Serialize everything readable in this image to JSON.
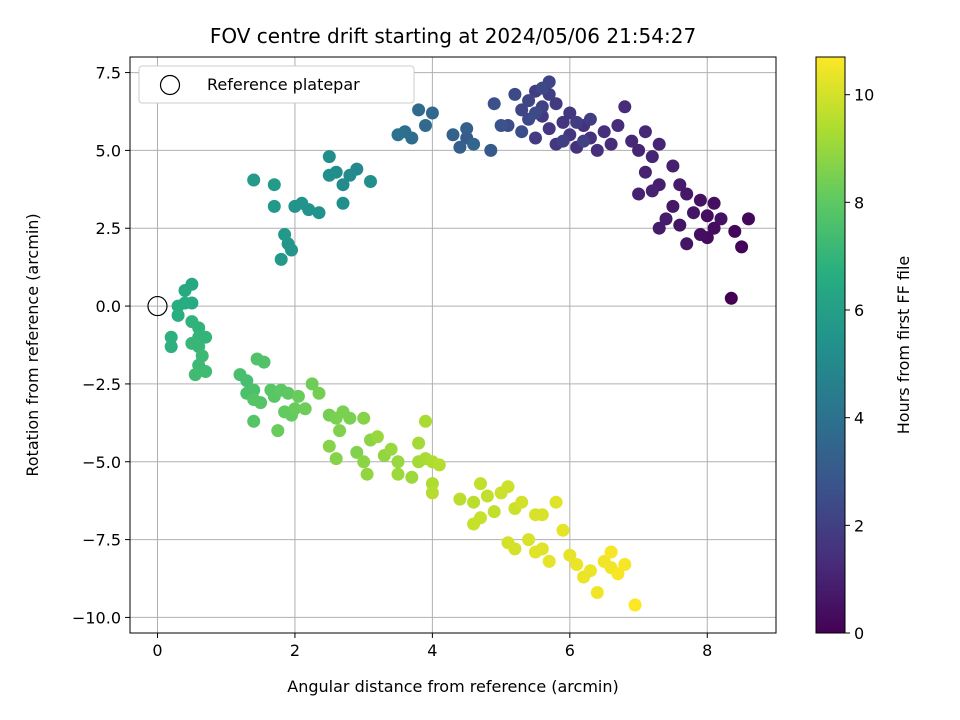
{
  "chart_data": {
    "type": "scatter",
    "title": "FOV centre drift starting at 2024/05/06 21:54:27",
    "xlabel": "Angular distance from reference (arcmin)",
    "ylabel": "Rotation from reference (arcmin)",
    "xlim": [
      -0.4,
      9.0
    ],
    "ylim": [
      -10.5,
      8.0
    ],
    "xticks": [
      0,
      2,
      4,
      6,
      8
    ],
    "xtick_labels": [
      "0",
      "2",
      "4",
      "6",
      "8"
    ],
    "yticks": [
      -10.0,
      -7.5,
      -5.0,
      -2.5,
      0.0,
      2.5,
      5.0,
      7.5
    ],
    "ytick_labels": [
      "−10.0",
      "−7.5",
      "−5.0",
      "−2.5",
      "0.0",
      "2.5",
      "5.0",
      "7.5"
    ],
    "grid": true,
    "legend": {
      "placement": "upper-left",
      "entries": [
        "Reference platepar"
      ]
    },
    "reference_point": {
      "x": 0,
      "y": 0
    },
    "colorbar": {
      "label": "Hours from first FF file",
      "range": [
        0,
        10.7
      ],
      "ticks": [
        0,
        2,
        4,
        6,
        8,
        10
      ],
      "tick_labels": [
        "0",
        "2",
        "4",
        "6",
        "8",
        "10"
      ],
      "colormap": "viridis"
    },
    "points": [
      [
        8.35,
        0.25,
        0.0
      ],
      [
        8.5,
        1.9,
        0.1
      ],
      [
        8.6,
        2.8,
        0.2
      ],
      [
        8.4,
        2.4,
        0.2
      ],
      [
        8.0,
        2.2,
        0.3
      ],
      [
        8.1,
        2.5,
        0.3
      ],
      [
        7.9,
        2.3,
        0.4
      ],
      [
        8.0,
        2.9,
        0.4
      ],
      [
        8.1,
        3.3,
        0.4
      ],
      [
        7.9,
        3.4,
        0.5
      ],
      [
        8.2,
        2.8,
        0.5
      ],
      [
        7.7,
        2.0,
        0.6
      ],
      [
        7.6,
        2.6,
        0.6
      ],
      [
        7.8,
        3.0,
        0.6
      ],
      [
        7.7,
        3.6,
        0.7
      ],
      [
        7.5,
        3.2,
        0.7
      ],
      [
        7.4,
        2.8,
        0.8
      ],
      [
        7.3,
        2.5,
        0.8
      ],
      [
        7.6,
        3.9,
        0.8
      ],
      [
        7.5,
        4.5,
        0.9
      ],
      [
        7.3,
        3.9,
        0.9
      ],
      [
        7.2,
        3.7,
        1.0
      ],
      [
        7.1,
        4.3,
        1.0
      ],
      [
        7.0,
        3.6,
        1.0
      ],
      [
        7.2,
        4.8,
        1.1
      ],
      [
        7.0,
        5.0,
        1.1
      ],
      [
        7.3,
        5.2,
        1.1
      ],
      [
        7.1,
        5.6,
        1.2
      ],
      [
        6.9,
        5.3,
        1.2
      ],
      [
        6.7,
        5.8,
        1.3
      ],
      [
        6.8,
        6.4,
        1.3
      ],
      [
        6.6,
        5.2,
        1.3
      ],
      [
        6.5,
        5.6,
        1.4
      ],
      [
        6.4,
        5.0,
        1.4
      ],
      [
        6.3,
        5.4,
        1.5
      ],
      [
        6.2,
        5.8,
        1.5
      ],
      [
        6.1,
        5.1,
        1.5
      ],
      [
        6.0,
        5.5,
        1.6
      ],
      [
        5.9,
        5.9,
        1.6
      ],
      [
        5.8,
        5.2,
        1.7
      ],
      [
        5.7,
        5.7,
        1.7
      ],
      [
        6.0,
        6.2,
        1.7
      ],
      [
        5.6,
        6.1,
        1.8
      ],
      [
        5.5,
        5.4,
        1.8
      ],
      [
        5.8,
        6.5,
        1.8
      ],
      [
        6.1,
        5.9,
        1.9
      ],
      [
        6.3,
        6.0,
        1.9
      ],
      [
        5.7,
        6.8,
        2.0
      ],
      [
        5.5,
        6.9,
        2.0
      ],
      [
        5.9,
        5.3,
        2.0
      ],
      [
        6.2,
        5.3,
        2.1
      ],
      [
        5.6,
        6.4,
        2.1
      ],
      [
        5.4,
        6.6,
        2.2
      ],
      [
        5.3,
        6.3,
        2.2
      ],
      [
        5.7,
        7.2,
        2.2
      ],
      [
        5.6,
        7.0,
        2.3
      ],
      [
        5.4,
        6.0,
        2.3
      ],
      [
        5.2,
        6.8,
        2.4
      ],
      [
        5.5,
        6.2,
        2.4
      ],
      [
        5.3,
        5.6,
        2.5
      ],
      [
        5.1,
        5.8,
        2.5
      ],
      [
        4.9,
        6.5,
        2.6
      ],
      [
        5.0,
        5.8,
        2.7
      ],
      [
        4.85,
        5.0,
        3.0
      ],
      [
        4.5,
        5.4,
        3.1
      ],
      [
        4.4,
        5.1,
        3.2
      ],
      [
        4.5,
        5.7,
        3.3
      ],
      [
        4.3,
        5.5,
        3.4
      ],
      [
        4.6,
        5.2,
        3.5
      ],
      [
        4.0,
        6.2,
        3.6
      ],
      [
        3.9,
        5.8,
        3.7
      ],
      [
        3.8,
        6.3,
        3.7
      ],
      [
        3.7,
        5.4,
        3.8
      ],
      [
        3.6,
        5.6,
        3.9
      ],
      [
        3.5,
        5.5,
        4.0
      ],
      [
        2.9,
        4.4,
        5.0
      ],
      [
        2.8,
        4.2,
        5.1
      ],
      [
        2.7,
        3.9,
        5.1
      ],
      [
        2.6,
        4.3,
        5.2
      ],
      [
        2.5,
        4.8,
        5.2
      ],
      [
        3.1,
        4.0,
        5.3
      ],
      [
        2.5,
        4.2,
        5.3
      ],
      [
        2.7,
        3.3,
        5.3
      ],
      [
        2.35,
        3.0,
        5.4
      ],
      [
        2.2,
        3.1,
        5.4
      ],
      [
        2.1,
        3.3,
        5.5
      ],
      [
        2.0,
        3.2,
        5.5
      ],
      [
        1.9,
        2.0,
        5.6
      ],
      [
        1.95,
        1.8,
        5.6
      ],
      [
        1.85,
        2.3,
        5.7
      ],
      [
        1.8,
        1.5,
        5.7
      ],
      [
        1.7,
        3.2,
        5.7
      ],
      [
        1.7,
        3.9,
        5.8
      ],
      [
        1.4,
        4.05,
        5.8
      ],
      [
        0.5,
        0.7,
        6.4
      ],
      [
        0.4,
        0.5,
        6.5
      ],
      [
        0.5,
        0.1,
        6.5
      ],
      [
        0.3,
        0.0,
        6.6
      ],
      [
        0.4,
        0.1,
        6.6
      ],
      [
        0.3,
        -0.3,
        6.7
      ],
      [
        0.2,
        -1.0,
        6.8
      ],
      [
        0.2,
        -1.3,
        6.8
      ],
      [
        0.5,
        -0.5,
        6.9
      ],
      [
        0.6,
        -0.7,
        6.9
      ],
      [
        0.6,
        -1.0,
        7.0
      ],
      [
        0.7,
        -1.0,
        7.0
      ],
      [
        0.6,
        -1.3,
        7.1
      ],
      [
        0.5,
        -1.2,
        7.1
      ],
      [
        0.65,
        -1.6,
        7.2
      ],
      [
        0.6,
        -1.9,
        7.2
      ],
      [
        0.7,
        -2.1,
        7.3
      ],
      [
        0.55,
        -2.2,
        7.3
      ],
      [
        1.2,
        -2.2,
        7.5
      ],
      [
        1.3,
        -2.4,
        7.5
      ],
      [
        1.4,
        -2.7,
        7.6
      ],
      [
        1.3,
        -2.8,
        7.6
      ],
      [
        1.45,
        -1.7,
        7.7
      ],
      [
        1.55,
        -1.8,
        7.7
      ],
      [
        1.4,
        -3.0,
        7.8
      ],
      [
        1.5,
        -3.1,
        7.8
      ],
      [
        1.4,
        -3.7,
        7.8
      ],
      [
        1.65,
        -2.7,
        7.9
      ],
      [
        1.7,
        -2.9,
        7.9
      ],
      [
        1.8,
        -2.7,
        8.0
      ],
      [
        1.9,
        -2.8,
        8.0
      ],
      [
        1.95,
        -3.5,
        8.1
      ],
      [
        1.85,
        -3.4,
        8.1
      ],
      [
        2.0,
        -3.3,
        8.2
      ],
      [
        1.75,
        -4.0,
        8.2
      ],
      [
        2.05,
        -2.9,
        8.2
      ],
      [
        2.15,
        -3.3,
        8.3
      ],
      [
        2.25,
        -2.5,
        8.3
      ],
      [
        2.35,
        -2.8,
        8.4
      ],
      [
        2.5,
        -3.5,
        8.4
      ],
      [
        2.6,
        -3.6,
        8.5
      ],
      [
        2.7,
        -3.4,
        8.5
      ],
      [
        2.8,
        -3.6,
        8.5
      ],
      [
        2.9,
        -4.7,
        8.6
      ],
      [
        2.65,
        -4.0,
        8.6
      ],
      [
        2.5,
        -4.5,
        8.7
      ],
      [
        2.6,
        -4.9,
        8.7
      ],
      [
        3.0,
        -3.6,
        8.7
      ],
      [
        3.1,
        -4.3,
        8.8
      ],
      [
        3.0,
        -5.0,
        8.8
      ],
      [
        3.05,
        -5.4,
        8.9
      ],
      [
        3.3,
        -4.8,
        8.9
      ],
      [
        3.2,
        -4.2,
        9.0
      ],
      [
        3.4,
        -4.6,
        9.0
      ],
      [
        3.5,
        -5.0,
        9.0
      ],
      [
        3.5,
        -5.4,
        9.1
      ],
      [
        3.7,
        -5.5,
        9.1
      ],
      [
        3.8,
        -5.0,
        9.2
      ],
      [
        3.8,
        -4.4,
        9.2
      ],
      [
        3.9,
        -4.9,
        9.3
      ],
      [
        3.9,
        -3.7,
        9.3
      ],
      [
        4.0,
        -5.0,
        9.4
      ],
      [
        4.0,
        -5.7,
        9.4
      ],
      [
        4.1,
        -5.1,
        9.5
      ],
      [
        4.0,
        -6.0,
        9.5
      ],
      [
        4.4,
        -6.2,
        9.6
      ],
      [
        4.6,
        -6.3,
        9.6
      ],
      [
        4.7,
        -5.7,
        9.7
      ],
      [
        4.8,
        -6.1,
        9.7
      ],
      [
        4.9,
        -6.6,
        9.7
      ],
      [
        4.6,
        -7.0,
        9.8
      ],
      [
        4.7,
        -6.8,
        9.8
      ],
      [
        5.0,
        -6.0,
        9.9
      ],
      [
        5.1,
        -5.8,
        9.9
      ],
      [
        5.2,
        -6.5,
        9.9
      ],
      [
        5.3,
        -6.3,
        10.0
      ],
      [
        5.1,
        -7.6,
        10.0
      ],
      [
        5.2,
        -7.8,
        10.0
      ],
      [
        5.4,
        -7.5,
        10.1
      ],
      [
        5.5,
        -6.7,
        10.1
      ],
      [
        5.6,
        -6.7,
        10.1
      ],
      [
        5.8,
        -6.3,
        10.2
      ],
      [
        5.5,
        -7.9,
        10.2
      ],
      [
        5.6,
        -7.8,
        10.2
      ],
      [
        5.7,
        -8.2,
        10.3
      ],
      [
        5.9,
        -7.2,
        10.3
      ],
      [
        6.0,
        -8.0,
        10.3
      ],
      [
        6.1,
        -8.3,
        10.4
      ],
      [
        6.2,
        -8.7,
        10.4
      ],
      [
        6.3,
        -8.5,
        10.4
      ],
      [
        6.4,
        -9.2,
        10.5
      ],
      [
        6.5,
        -8.2,
        10.5
      ],
      [
        6.6,
        -8.4,
        10.5
      ],
      [
        6.7,
        -8.6,
        10.6
      ],
      [
        6.6,
        -7.9,
        10.6
      ],
      [
        6.8,
        -8.3,
        10.6
      ],
      [
        6.95,
        -9.6,
        10.7
      ]
    ]
  }
}
